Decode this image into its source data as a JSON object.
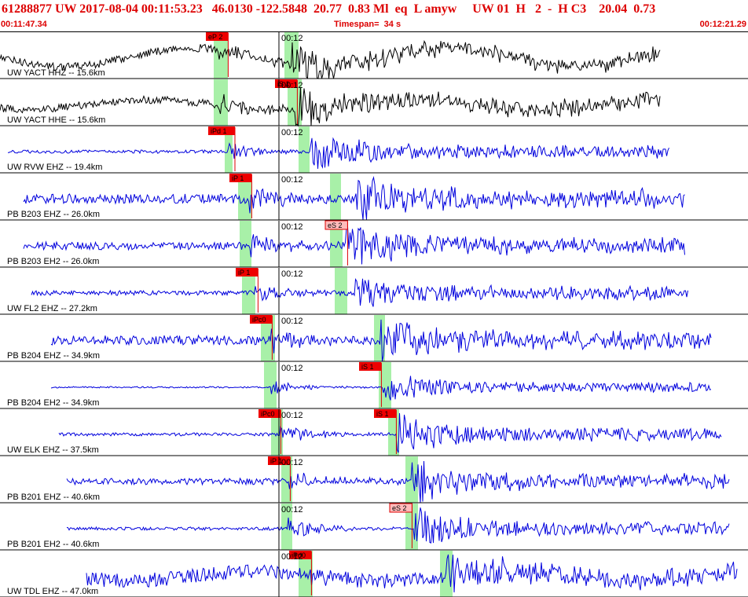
{
  "header": {
    "title": "61288877 UW 2017-08-04 00:11:53.23   46.0130 -122.5848  20.77  0.83 Ml  eq  L amyw     UW 01  H   2  -  H C3    20.04  0.73",
    "start_time": "00:11:47.34",
    "timespan": "Timespan=  34 s",
    "end_time": "00:12:21.29"
  },
  "colors": {
    "header_text": "#dd0000",
    "waveform_blue": "#0000dd",
    "waveform_black": "#000000",
    "pick_box": "#ee0000",
    "pick_box_light": "#ffbbbb",
    "window_band": "#a8f0a8"
  },
  "chart_data": {
    "type": "line",
    "title": "61288877 UW 2017-08-04 00:11:53.23",
    "time_tick_label": "00:12",
    "traces": [
      {
        "label": "UW YACT HHZ -- 15.6km",
        "color": "black",
        "start": 0,
        "end": 840,
        "p": 278,
        "s": 372,
        "noise": 5,
        "amp": 22,
        "sine": 12,
        "band": [
          272,
          290,
          362,
          380
        ],
        "picks": [
          {
            "text": "eP 2",
            "x": 262,
            "light": false
          }
        ]
      },
      {
        "label": "UW YACT HHE -- 15.6km",
        "color": "black",
        "start": 0,
        "end": 840,
        "p": 278,
        "s": 375,
        "noise": 5,
        "amp": 24,
        "sine": 6,
        "band": [
          272,
          290,
          366,
          384
        ],
        "picks": [
          {
            "text": "iS 1",
            "x": 350,
            "light": false
          }
        ]
      },
      {
        "label": "UW RVW EHZ -- 19.4km",
        "color": "blue",
        "start": 10,
        "end": 852,
        "p": 289,
        "s": 395,
        "noise": 2,
        "amp": 24,
        "sine": 0,
        "band": [
          286,
          296,
          380,
          394
        ],
        "picks": [
          {
            "text": "iPd 1",
            "x": 265,
            "light": false
          }
        ]
      },
      {
        "label": "PB B203 EHZ -- 26.0km",
        "color": "blue",
        "start": 30,
        "end": 872,
        "p": 317,
        "s": 452,
        "noise": 6,
        "amp": 28,
        "sine": 0,
        "band": [
          303,
          320,
          420,
          434
        ],
        "picks": [
          {
            "text": "iP 1",
            "x": 292,
            "light": false
          }
        ]
      },
      {
        "label": "PB B203 EH2 -- 26.0km",
        "color": "blue",
        "start": 30,
        "end": 872,
        "p": 317,
        "s": 440,
        "noise": 5,
        "amp": 26,
        "sine": 0,
        "band": [
          305,
          320,
          420,
          436
        ],
        "picks": [
          {
            "text": "eS 2",
            "x": 414,
            "light": true
          }
        ]
      },
      {
        "label": "UW FL2 EHZ -- 27.2km",
        "color": "blue",
        "start": 40,
        "end": 876,
        "p": 325,
        "s": 452,
        "noise": 3,
        "amp": 22,
        "sine": 0,
        "band": [
          308,
          325,
          426,
          442
        ],
        "picks": [
          {
            "text": "iP 1",
            "x": 300,
            "light": false
          }
        ]
      },
      {
        "label": "PB B204 EHZ -- 34.9km",
        "color": "blue",
        "start": 65,
        "end": 906,
        "p": 345,
        "s": 484,
        "noise": 6,
        "amp": 26,
        "sine": 0,
        "band": [
          332,
          350,
          476,
          490
        ],
        "picks": [
          {
            "text": "iPc0",
            "x": 318,
            "light": false
          }
        ]
      },
      {
        "label": "PB B204 EH2 -- 34.9km",
        "color": "blue",
        "start": 65,
        "end": 906,
        "p": 345,
        "s": 488,
        "noise": 1,
        "amp": 18,
        "sine": 0,
        "band": [
          336,
          352,
          482,
          498
        ],
        "picks": [
          {
            "text": "iS 1",
            "x": 457,
            "light": false
          }
        ]
      },
      {
        "label": "UW ELK EHZ -- 37.5km",
        "color": "blue",
        "start": 75,
        "end": 918,
        "p": 356,
        "s": 505,
        "noise": 2,
        "amp": 24,
        "sine": 0,
        "band": [
          345,
          360,
          494,
          508
        ],
        "picks": [
          {
            "text": "iPc0",
            "x": 329,
            "light": false
          },
          {
            "text": "iS 1",
            "x": 476,
            "light": false
          }
        ]
      },
      {
        "label": "PB B201 EHZ -- 40.6km",
        "color": "blue",
        "start": 85,
        "end": 928,
        "p": 366,
        "s": 524,
        "noise": 4,
        "amp": 24,
        "sine": 0,
        "band": [
          358,
          372,
          516,
          532
        ],
        "picks": [
          {
            "text": "iP 1",
            "x": 341,
            "light": false
          }
        ]
      },
      {
        "label": "PB B201 EH2 -- 40.6km",
        "color": "blue",
        "start": 85,
        "end": 928,
        "p": 366,
        "s": 527,
        "noise": 2,
        "amp": 24,
        "sine": 0,
        "band": [
          358,
          372,
          516,
          532
        ],
        "picks": [
          {
            "text": "eS 2",
            "x": 496,
            "light": true
          }
        ]
      },
      {
        "label": "UW TDL EHZ -- 47.0km",
        "color": "blue",
        "start": 110,
        "end": 938,
        "p": 395,
        "s": 560,
        "noise": 9,
        "amp": 22,
        "sine": 6,
        "band": [
          380,
          398,
          560,
          576
        ],
        "picks": [
          {
            "text": "iPd0",
            "x": 368,
            "light": false
          }
        ]
      }
    ]
  }
}
